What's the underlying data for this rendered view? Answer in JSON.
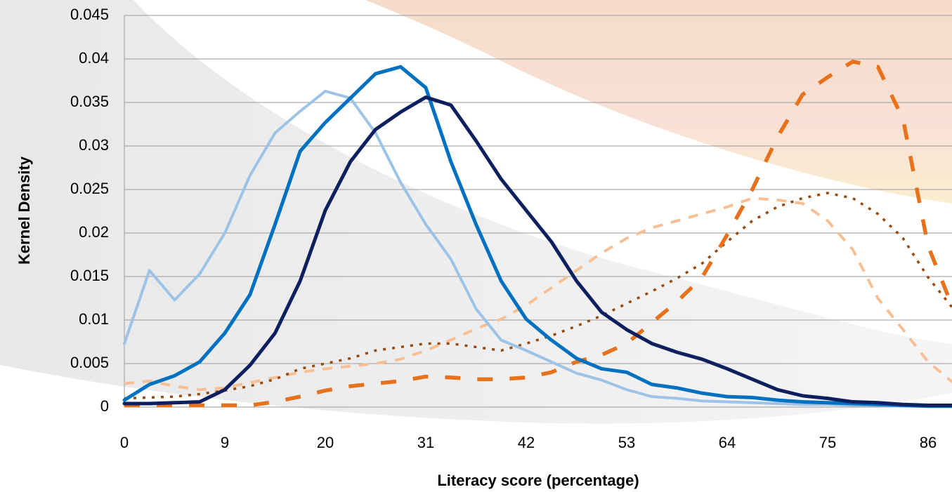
{
  "chart_data": {
    "type": "line",
    "x_label": "Literacy score (percentage)",
    "y_label": "Kernel Density",
    "categories": [
      0,
      null,
      null,
      null,
      9,
      null,
      null,
      null,
      20,
      null,
      null,
      null,
      31,
      null,
      null,
      null,
      42,
      null,
      null,
      null,
      53,
      null,
      null,
      null,
      64,
      null,
      null,
      null,
      75,
      null,
      null,
      null,
      86,
      null
    ],
    "ylim": [
      0,
      0.045
    ],
    "yticks": [
      0,
      0.005,
      0.01,
      0.015,
      0.02,
      0.025,
      0.03,
      0.035,
      0.04,
      0.045
    ],
    "grid": true,
    "series": [
      {
        "color": "#9dc3e6",
        "style": "solid",
        "values": [
          0.0073,
          0.0157,
          0.0123,
          0.0153,
          0.02,
          0.0266,
          0.0315,
          0.034,
          0.0363,
          0.0355,
          0.0315,
          0.0258,
          0.021,
          0.017,
          0.0113,
          0.0077,
          0.0065,
          0.0052,
          0.0039,
          0.0031,
          0.002,
          0.0012,
          0.001,
          0.0007,
          0.0006,
          0.0005,
          0.0004,
          0.0003,
          0.0003,
          0.0002,
          0.0002,
          0.0001,
          0.0001,
          0.0001
        ]
      },
      {
        "color": "#0070c0",
        "style": "solid",
        "values": [
          0.0008,
          0.0026,
          0.0036,
          0.0052,
          0.0085,
          0.0129,
          0.021,
          0.0294,
          0.0327,
          0.0355,
          0.0383,
          0.0391,
          0.0367,
          0.0282,
          0.021,
          0.0145,
          0.0101,
          0.0077,
          0.0056,
          0.0044,
          0.004,
          0.0026,
          0.0022,
          0.0016,
          0.0012,
          0.0011,
          0.0008,
          0.0006,
          0.0005,
          0.0004,
          0.0003,
          0.0002,
          0.0001,
          0.0001
        ]
      },
      {
        "color": "#0c1f5e",
        "style": "solid",
        "values": [
          0.0004,
          0.0004,
          0.0005,
          0.0006,
          0.002,
          0.0048,
          0.0085,
          0.0145,
          0.0226,
          0.0282,
          0.0319,
          0.0339,
          0.0356,
          0.0347,
          0.0306,
          0.0262,
          0.0226,
          0.019,
          0.0145,
          0.0109,
          0.0089,
          0.0073,
          0.0063,
          0.0055,
          0.0044,
          0.0032,
          0.002,
          0.0013,
          0.001,
          0.0006,
          0.0005,
          0.0003,
          0.0002,
          0.0002
        ]
      },
      {
        "color": "#f8bf95",
        "style": "dashed",
        "values": [
          0.0027,
          0.003,
          0.0024,
          0.002,
          0.0022,
          0.0028,
          0.0034,
          0.004,
          0.0044,
          0.0047,
          0.005,
          0.0055,
          0.0065,
          0.0077,
          0.009,
          0.0101,
          0.0117,
          0.0137,
          0.0157,
          0.0177,
          0.0194,
          0.0206,
          0.0214,
          0.0222,
          0.023,
          0.024,
          0.0238,
          0.0234,
          0.0214,
          0.0181,
          0.0125,
          0.0089,
          0.0052,
          0.0028
        ]
      },
      {
        "color": "#974a0f",
        "style": "dotted",
        "values": [
          0.001,
          0.0011,
          0.0012,
          0.0015,
          0.0019,
          0.0024,
          0.0032,
          0.0044,
          0.005,
          0.0056,
          0.0065,
          0.0069,
          0.0073,
          0.0073,
          0.0069,
          0.0065,
          0.0073,
          0.0082,
          0.0093,
          0.0105,
          0.0119,
          0.0133,
          0.0148,
          0.0165,
          0.019,
          0.0214,
          0.023,
          0.024,
          0.0246,
          0.024,
          0.0222,
          0.0194,
          0.0149,
          0.0113
        ]
      },
      {
        "color": "#e8711c",
        "style": "longdash",
        "values": [
          0.0002,
          0.0002,
          0.0002,
          0.0002,
          0.0002,
          0.0002,
          0.0006,
          0.0012,
          0.0019,
          0.0024,
          0.0027,
          0.003,
          0.0035,
          0.0034,
          0.0032,
          0.0032,
          0.0034,
          0.004,
          0.0052,
          0.006,
          0.0073,
          0.0097,
          0.0121,
          0.0149,
          0.0198,
          0.025,
          0.031,
          0.0359,
          0.0379,
          0.0397,
          0.0391,
          0.0331,
          0.0185,
          0.0113
        ]
      }
    ]
  }
}
